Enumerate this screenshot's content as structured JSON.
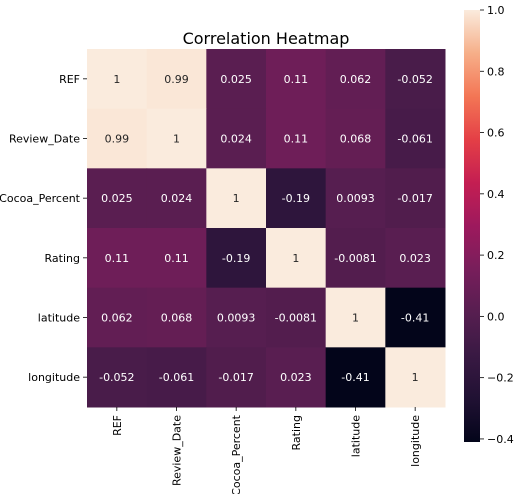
{
  "chart_data": {
    "type": "heatmap",
    "title": "Correlation Heatmap",
    "xlabel": "",
    "ylabel": "",
    "labels": [
      "REF",
      "Review_Date",
      "Cocoa_Percent",
      "Rating",
      "latitude",
      "longitude"
    ],
    "matrix": [
      [
        1,
        0.99,
        0.025,
        0.11,
        0.062,
        -0.052
      ],
      [
        0.99,
        1,
        0.024,
        0.11,
        0.068,
        -0.061
      ],
      [
        0.025,
        0.024,
        1,
        -0.19,
        0.0093,
        -0.017
      ],
      [
        0.11,
        0.11,
        -0.19,
        1,
        -0.0081,
        0.023
      ],
      [
        0.062,
        0.068,
        0.0093,
        -0.0081,
        1,
        -0.41
      ],
      [
        -0.052,
        -0.061,
        -0.017,
        0.023,
        -0.41,
        1
      ]
    ],
    "cell_labels": [
      [
        "1",
        "0.99",
        "0.025",
        "0.11",
        "0.062",
        "-0.052"
      ],
      [
        "0.99",
        "1",
        "0.024",
        "0.11",
        "0.068",
        "-0.061"
      ],
      [
        "0.025",
        "0.024",
        "1",
        "-0.19",
        "0.0093",
        "-0.017"
      ],
      [
        "0.11",
        "0.11",
        "-0.19",
        "1",
        "-0.0081",
        "0.023"
      ],
      [
        "0.062",
        "0.068",
        "0.0093",
        "-0.0081",
        "1",
        "-0.41"
      ],
      [
        "-0.052",
        "-0.061",
        "-0.017",
        "0.023",
        "-0.41",
        "1"
      ]
    ],
    "colormap": "rocket",
    "colorbar": {
      "vmin": -0.41,
      "vmax": 1,
      "ticks": [
        1.0,
        0.8,
        0.6,
        0.4,
        0.2,
        0.0,
        -0.2,
        -0.4
      ],
      "tick_labels": [
        "1.0",
        "0.8",
        "0.6",
        "0.4",
        "0.2",
        "0.0",
        "−0.2",
        "−0.4"
      ]
    }
  }
}
